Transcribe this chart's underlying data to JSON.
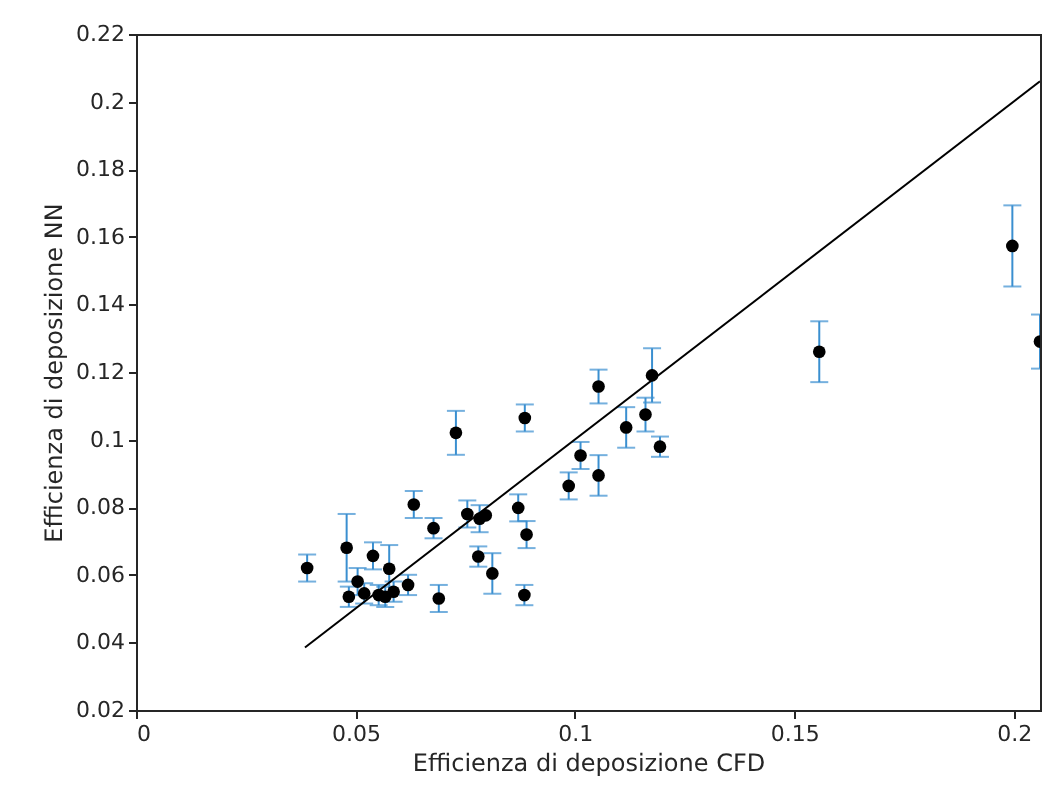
{
  "chart_data": {
    "type": "scatter",
    "xlabel": "Efficienza di deposizione CFD",
    "ylabel": "Efficienza di deposizione NN",
    "xlim": [
      0,
      0.206
    ],
    "ylim": [
      0.02,
      0.22
    ],
    "xticks": [
      0,
      0.05,
      0.1,
      0.15,
      0.2
    ],
    "yticks": [
      0.02,
      0.04,
      0.06,
      0.08,
      0.1,
      0.12,
      0.14,
      0.16,
      0.18,
      0.2,
      0.22
    ],
    "grid": false,
    "series": [
      {
        "color": "#000000",
        "marker": "circle",
        "x": [
          0.039,
          0.048,
          0.0485,
          0.0505,
          0.052,
          0.054,
          0.0553,
          0.0568,
          0.0577,
          0.0587,
          0.062,
          0.0633,
          0.0678,
          0.069,
          0.0729,
          0.0755,
          0.078,
          0.0783,
          0.0797,
          0.0812,
          0.0871,
          0.0886,
          0.089,
          0.0885,
          0.0986,
          0.1013,
          0.1054,
          0.1054,
          0.1117,
          0.1161,
          0.1176,
          0.1194,
          0.1557,
          0.1997,
          0.206
        ],
        "values": [
          0.062,
          0.068,
          0.0535,
          0.058,
          0.0545,
          0.0656,
          0.054,
          0.0535,
          0.0618,
          0.055,
          0.057,
          0.0808,
          0.0738,
          0.053,
          0.102,
          0.078,
          0.0654,
          0.0766,
          0.0776,
          0.0604,
          0.0798,
          0.1064,
          0.0719,
          0.054,
          0.0863,
          0.0953,
          0.0894,
          0.1157,
          0.1036,
          0.1074,
          0.119,
          0.0979,
          0.126,
          0.1573,
          0.129
        ],
        "errors": [
          0.004,
          0.01,
          0.003,
          0.004,
          0.003,
          0.004,
          0.003,
          0.003,
          0.007,
          0.003,
          0.003,
          0.004,
          0.003,
          0.004,
          0.0065,
          0.004,
          0.003,
          0.004,
          null,
          0.006,
          0.004,
          0.004,
          0.004,
          0.003,
          0.004,
          0.004,
          0.006,
          0.005,
          0.006,
          0.005,
          0.008,
          0.003,
          0.009,
          0.012,
          0.008
        ]
      },
      {
        "type": "line",
        "color": "#000000",
        "line_style": "solid",
        "marker": "none",
        "x": [
          0.0385,
          0.206
        ],
        "values": [
          0.0385,
          0.206
        ]
      }
    ]
  }
}
